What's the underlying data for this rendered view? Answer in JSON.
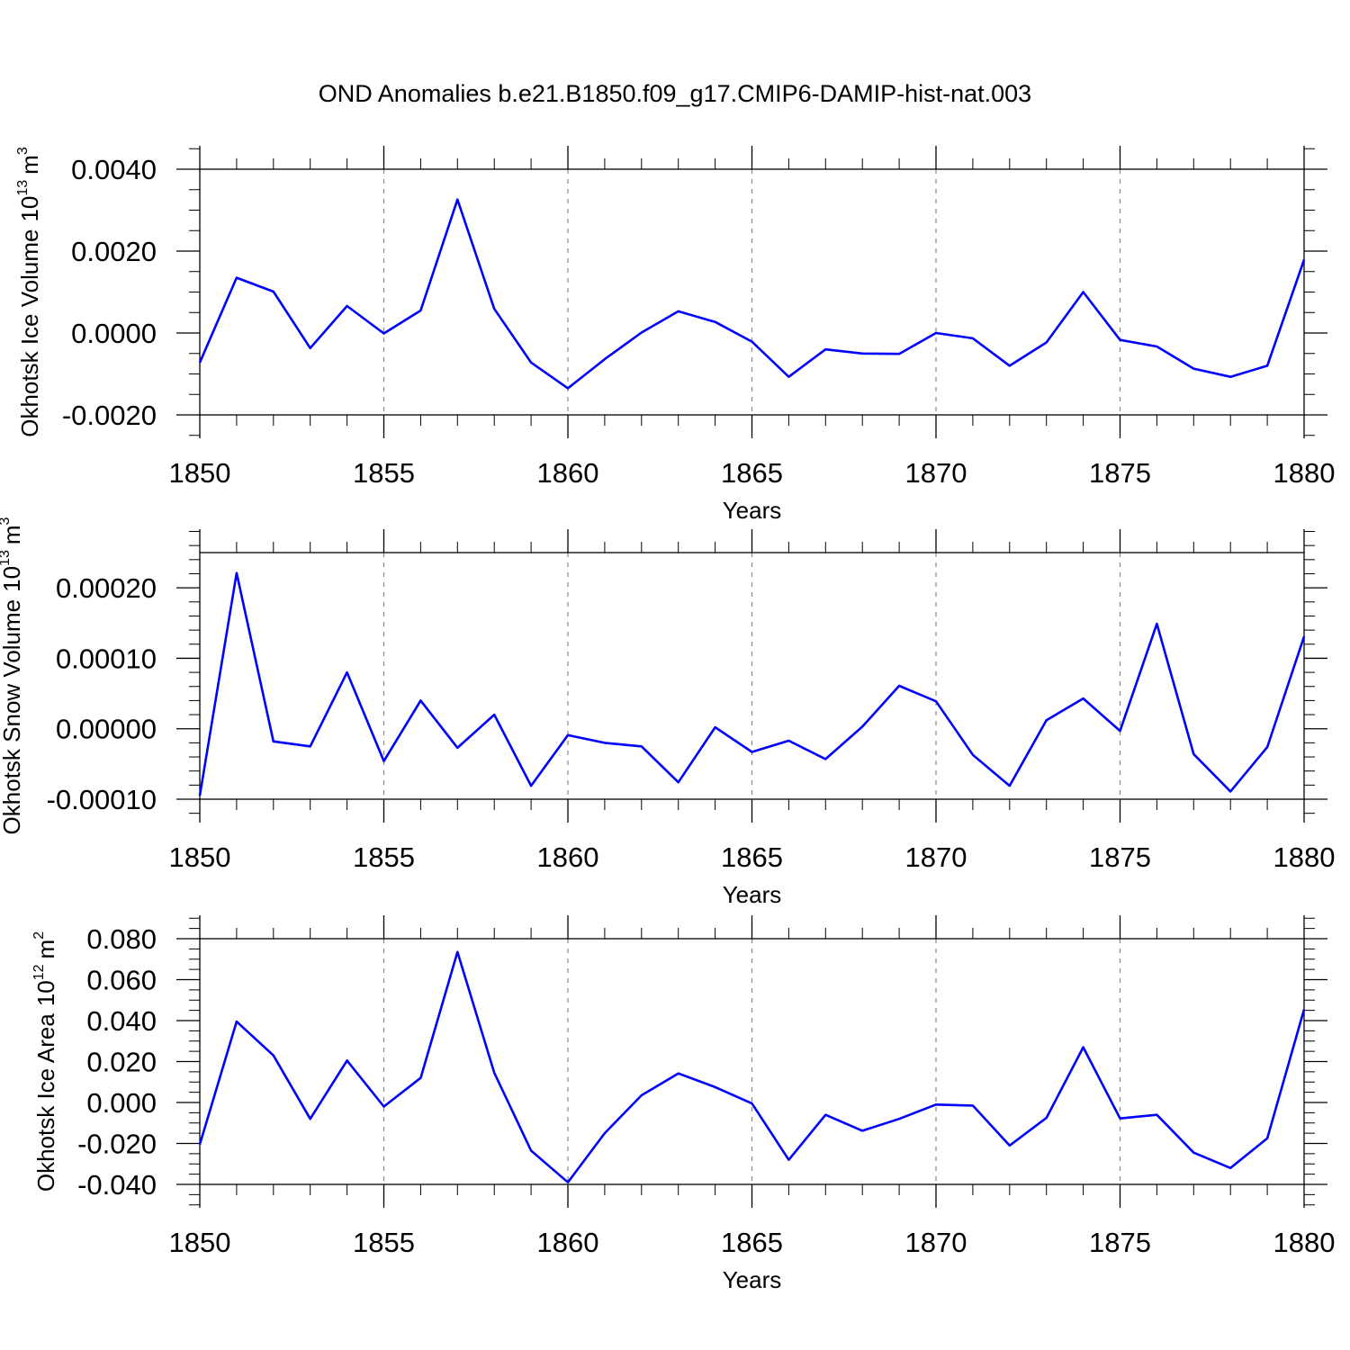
{
  "title": "OND Anomalies b.e21.B1850.f09_g17.CMIP6-DAMIP-hist-nat.003",
  "line_color": "#0000ff",
  "chart_data": [
    {
      "type": "line",
      "xlabel": "Years",
      "ylabel": "Okhotsk Ice Volume",
      "ylabel_unit_mantissa": "10",
      "ylabel_unit_exp": "13",
      "ylabel_unit_base": "m",
      "ylabel_unit_pow": "3",
      "xlim": [
        1850,
        1880
      ],
      "ylim": [
        -0.002,
        0.004
      ],
      "xticks": [
        1850,
        1855,
        1860,
        1865,
        1870,
        1875,
        1880
      ],
      "xtick_labels": [
        "1850",
        "1855",
        "1860",
        "1865",
        "1870",
        "1875",
        "1880"
      ],
      "yticks": [
        -0.002,
        0.0,
        0.002,
        0.004
      ],
      "ytick_labels": [
        "-0.0020",
        "0.0000",
        "0.0020",
        "0.0040"
      ],
      "minor_dx": 1,
      "minor_dy": 0.0005,
      "grid": "vertical dashed at major x ticks",
      "x": [
        1850,
        1851,
        1852,
        1853,
        1854,
        1855,
        1856,
        1857,
        1858,
        1859,
        1860,
        1861,
        1862,
        1863,
        1864,
        1865,
        1866,
        1867,
        1868,
        1869,
        1870,
        1871,
        1872,
        1873,
        1874,
        1875,
        1876,
        1877,
        1878,
        1879,
        1880
      ],
      "series": [
        {
          "name": "Okhotsk Ice Volume",
          "values": [
            -0.00072,
            0.00135,
            0.00101,
            -0.00037,
            0.00066,
            -1e-05,
            0.00055,
            0.00326,
            0.00059,
            -0.00072,
            -0.00135,
            -0.00064,
            1e-05,
            0.00053,
            0.00027,
            -0.00021,
            -0.00107,
            -0.0004,
            -0.0005,
            -0.00051,
            0.0,
            -0.00013,
            -0.0008,
            -0.00023,
            0.001,
            -0.00017,
            -0.00033,
            -0.00087,
            -0.00107,
            -0.0008,
            0.00179
          ]
        }
      ]
    },
    {
      "type": "line",
      "xlabel": "Years",
      "ylabel": "Okhotsk Snow Volume",
      "ylabel_unit_mantissa": "10",
      "ylabel_unit_exp": "13",
      "ylabel_unit_base": "m",
      "ylabel_unit_pow": "3",
      "xlim": [
        1850,
        1880
      ],
      "ylim": [
        -0.0001,
        0.00025
      ],
      "xticks": [
        1850,
        1855,
        1860,
        1865,
        1870,
        1875,
        1880
      ],
      "xtick_labels": [
        "1850",
        "1855",
        "1860",
        "1865",
        "1870",
        "1875",
        "1880"
      ],
      "yticks": [
        -0.0001,
        0.0,
        0.0001,
        0.0002
      ],
      "ytick_labels": [
        "-0.00010",
        "0.00000",
        "0.00010",
        "0.00020"
      ],
      "minor_dx": 1,
      "minor_dy": 2e-05,
      "grid": "vertical dashed at major x ticks",
      "x": [
        1850,
        1851,
        1852,
        1853,
        1854,
        1855,
        1856,
        1857,
        1858,
        1859,
        1860,
        1861,
        1862,
        1863,
        1864,
        1865,
        1866,
        1867,
        1868,
        1869,
        1870,
        1871,
        1872,
        1873,
        1874,
        1875,
        1876,
        1877,
        1878,
        1879,
        1880
      ],
      "series": [
        {
          "name": "Okhotsk Snow Volume",
          "values": [
            -9.5e-05,
            0.000221,
            -1.8e-05,
            -2.5e-05,
            8e-05,
            -4.6e-05,
            4e-05,
            -2.7e-05,
            2e-05,
            -8.1e-05,
            -9e-06,
            -2e-05,
            -2.5e-05,
            -7.6e-05,
            2e-06,
            -3.3e-05,
            -1.7e-05,
            -4.3e-05,
            3e-06,
            6.1e-05,
            3.9e-05,
            -3.7e-05,
            -8.1e-05,
            1.2e-05,
            4.3e-05,
            -3e-06,
            0.000149,
            -3.6e-05,
            -8.9e-05,
            -2.6e-05,
            0.000131
          ]
        }
      ]
    },
    {
      "type": "line",
      "xlabel": "Years",
      "ylabel": "Okhotsk Ice Area",
      "ylabel_unit_mantissa": "10",
      "ylabel_unit_exp": "12",
      "ylabel_unit_base": "m",
      "ylabel_unit_pow": "2",
      "xlim": [
        1850,
        1880
      ],
      "ylim": [
        -0.04,
        0.08
      ],
      "xticks": [
        1850,
        1855,
        1860,
        1865,
        1870,
        1875,
        1880
      ],
      "xtick_labels": [
        "1850",
        "1855",
        "1860",
        "1865",
        "1870",
        "1875",
        "1880"
      ],
      "yticks": [
        -0.04,
        -0.02,
        0.0,
        0.02,
        0.04,
        0.06,
        0.08
      ],
      "ytick_labels": [
        "-0.040",
        "-0.020",
        "0.000",
        "0.020",
        "0.040",
        "0.060",
        "0.080"
      ],
      "minor_dx": 1,
      "minor_dy": 0.005,
      "grid": "vertical dashed at major x ticks",
      "x": [
        1850,
        1851,
        1852,
        1853,
        1854,
        1855,
        1856,
        1857,
        1858,
        1859,
        1860,
        1861,
        1862,
        1863,
        1864,
        1865,
        1866,
        1867,
        1868,
        1869,
        1870,
        1871,
        1872,
        1873,
        1874,
        1875,
        1876,
        1877,
        1878,
        1879,
        1880
      ],
      "series": [
        {
          "name": "Okhotsk Ice Area",
          "values": [
            -0.0205,
            0.0395,
            0.023,
            -0.008,
            0.0205,
            -0.002,
            0.012,
            0.0735,
            0.0145,
            -0.0235,
            -0.039,
            -0.015,
            0.0035,
            0.0142,
            0.0075,
            -0.0005,
            -0.028,
            -0.006,
            -0.0138,
            -0.008,
            -0.001,
            -0.0015,
            -0.021,
            -0.0075,
            0.027,
            -0.0078,
            -0.006,
            -0.0245,
            -0.032,
            -0.0175,
            0.0455
          ]
        }
      ]
    }
  ]
}
